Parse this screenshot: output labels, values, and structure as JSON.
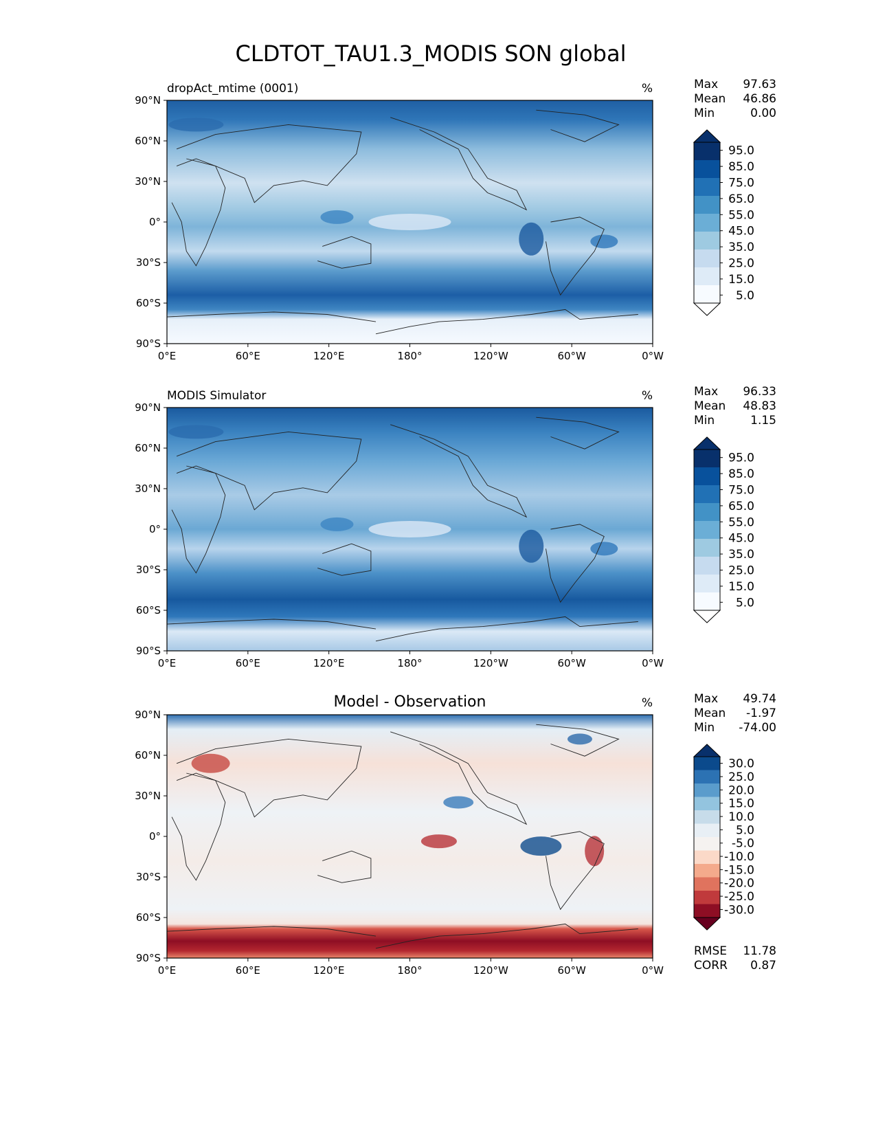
{
  "figure": {
    "title": "CLDTOT_TAU1.3_MODIS SON global"
  },
  "chart_data": [
    {
      "type": "heatmap",
      "title": "",
      "left_title": "dropAct_mtime (0001)",
      "units": "%",
      "xlabel": "",
      "ylabel": "",
      "x_ticks": [
        "0°E",
        "60°E",
        "120°E",
        "180°",
        "120°W",
        "60°W",
        "0°W"
      ],
      "y_ticks": [
        "90°N",
        "60°N",
        "30°N",
        "0°",
        "30°S",
        "60°S",
        "90°S"
      ],
      "xlim": [
        0,
        360
      ],
      "ylim": [
        -90,
        90
      ],
      "stats": [
        {
          "label": "Max",
          "value": "97.63"
        },
        {
          "label": "Mean",
          "value": "46.86"
        },
        {
          "label": "Min",
          "value": "0.00"
        }
      ],
      "colorbar": {
        "labels": [
          "95.0",
          "85.0",
          "75.0",
          "65.0",
          "55.0",
          "45.0",
          "35.0",
          "25.0",
          "15.0",
          "5.0"
        ],
        "colors": [
          "#08306b",
          "#08519c",
          "#2171b5",
          "#4292c6",
          "#6baed6",
          "#9ecae1",
          "#c6dbef",
          "#deebf7",
          "#f7fbff"
        ],
        "over": "#08306b",
        "under": "#ffffff"
      }
    },
    {
      "type": "heatmap",
      "title": "",
      "left_title": "MODIS Simulator",
      "units": "%",
      "xlabel": "",
      "ylabel": "",
      "x_ticks": [
        "0°E",
        "60°E",
        "120°E",
        "180°",
        "120°W",
        "60°W",
        "0°W"
      ],
      "y_ticks": [
        "90°N",
        "60°N",
        "30°N",
        "0°",
        "30°S",
        "60°S",
        "90°S"
      ],
      "xlim": [
        0,
        360
      ],
      "ylim": [
        -90,
        90
      ],
      "stats": [
        {
          "label": "Max",
          "value": "96.33"
        },
        {
          "label": "Mean",
          "value": "48.83"
        },
        {
          "label": "Min",
          "value": "1.15"
        }
      ],
      "colorbar": {
        "labels": [
          "95.0",
          "85.0",
          "75.0",
          "65.0",
          "55.0",
          "45.0",
          "35.0",
          "25.0",
          "15.0",
          "5.0"
        ],
        "colors": [
          "#08306b",
          "#08519c",
          "#2171b5",
          "#4292c6",
          "#6baed6",
          "#9ecae1",
          "#c6dbef",
          "#deebf7",
          "#f7fbff"
        ],
        "over": "#08306b",
        "under": "#ffffff"
      }
    },
    {
      "type": "heatmap",
      "title": "Model - Observation",
      "left_title": "",
      "units": "%",
      "xlabel": "",
      "ylabel": "",
      "x_ticks": [
        "0°E",
        "60°E",
        "120°E",
        "180°",
        "120°W",
        "60°W",
        "0°W"
      ],
      "y_ticks": [
        "90°N",
        "60°N",
        "30°N",
        "0°",
        "30°S",
        "60°S",
        "90°S"
      ],
      "xlim": [
        0,
        360
      ],
      "ylim": [
        -90,
        90
      ],
      "stats": [
        {
          "label": "Max",
          "value": "49.74"
        },
        {
          "label": "Mean",
          "value": "-1.97"
        },
        {
          "label": "Min",
          "value": "-74.00"
        }
      ],
      "extra_stats": [
        {
          "label": "RMSE",
          "value": "11.78"
        },
        {
          "label": "CORR",
          "value": "0.87"
        }
      ],
      "colorbar": {
        "labels": [
          "30.0",
          "25.0",
          "20.0",
          "15.0",
          "10.0",
          "5.0",
          "-5.0",
          "-10.0",
          "-15.0",
          "-20.0",
          "-25.0",
          "-30.0"
        ],
        "colors": [
          "#0b4a8c",
          "#2c72b3",
          "#5a9ccc",
          "#93c4df",
          "#c7dcea",
          "#e8eff5",
          "#f5f2f0",
          "#fbd9c8",
          "#f4aa8c",
          "#e0735e",
          "#c03a3c",
          "#8e0e24"
        ],
        "over": "#08306b",
        "under": "#67001f"
      }
    }
  ]
}
